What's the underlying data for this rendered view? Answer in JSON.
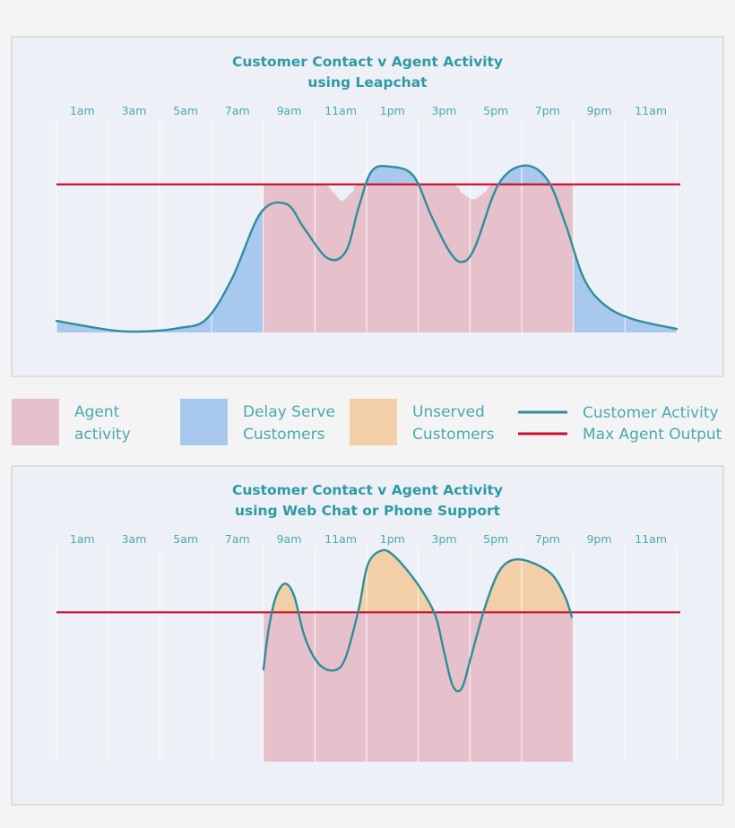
{
  "colors": {
    "agent_activity": "#e6c1cb",
    "delay_serve": "#a9c8ee",
    "unserved": "#f3cfa8",
    "customer_activity": "#2e8f9a",
    "max_agent_output": "#c8102e",
    "panel_background": "#edf1f7",
    "gridline": "#ffffff",
    "text": "#2f9aa3"
  },
  "legend": {
    "items": [
      {
        "kind": "swatch",
        "color_key": "agent_activity",
        "lines": [
          "Agent",
          "activity"
        ]
      },
      {
        "kind": "swatch",
        "color_key": "delay_serve",
        "lines": [
          "Delay Serve",
          "Customers"
        ]
      },
      {
        "kind": "swatch",
        "color_key": "unserved",
        "lines": [
          "Unserved",
          "Customers"
        ]
      },
      {
        "kind": "line",
        "color_key": "customer_activity",
        "lines": [
          "Customer Activity"
        ]
      },
      {
        "kind": "line",
        "color_key": "max_agent_output",
        "lines": [
          "Max Agent Output"
        ]
      }
    ]
  },
  "chart_data": [
    {
      "type": "area",
      "title": "Customer Contact v Agent Activity",
      "subtitle": "using Leapchat",
      "xlabel": "",
      "ylabel": "",
      "tick_labels": [
        "1am",
        "3am",
        "5am",
        "7am",
        "9am",
        "11am",
        "1pm",
        "3pm",
        "5pm",
        "7pm",
        "9pm",
        "11am"
      ],
      "xlim": [
        0,
        24
      ],
      "ylim": [
        0,
        144
      ],
      "grid": "vertical",
      "x_unit": "hour of day",
      "max_agent_output": 100,
      "customer_activity": [
        [
          0,
          7.8
        ],
        [
          2,
          1.8
        ],
        [
          3.2,
          0.6
        ],
        [
          4.75,
          3
        ],
        [
          5.8,
          9
        ],
        [
          6.8,
          36.7
        ],
        [
          7.9,
          80.7
        ],
        [
          8.9,
          86.7
        ],
        [
          9.6,
          69.9
        ],
        [
          10.5,
          50
        ],
        [
          11.2,
          54.8
        ],
        [
          11.7,
          84.9
        ],
        [
          12.2,
          109
        ],
        [
          12.9,
          112
        ],
        [
          13.8,
          106
        ],
        [
          14.5,
          78.9
        ],
        [
          15.2,
          54.8
        ],
        [
          15.7,
          47.6
        ],
        [
          16.2,
          57.8
        ],
        [
          17.1,
          100
        ],
        [
          18.1,
          112.7
        ],
        [
          19,
          103
        ],
        [
          19.7,
          72.9
        ],
        [
          20.4,
          36.7
        ],
        [
          21.2,
          18.7
        ],
        [
          22.3,
          9
        ],
        [
          24,
          2.4
        ]
      ],
      "customer_fill_key": "delay_serve",
      "agent_activity": [
        [
          8,
          100
        ],
        [
          10.2,
          100
        ],
        [
          10.7,
          95
        ],
        [
          11.05,
          89
        ],
        [
          11.45,
          95
        ],
        [
          11.9,
          100
        ],
        [
          15.1,
          100
        ],
        [
          15.7,
          94
        ],
        [
          16.15,
          90
        ],
        [
          16.6,
          95
        ],
        [
          17.1,
          100
        ],
        [
          20,
          100
        ]
      ]
    },
    {
      "type": "area",
      "title": "Customer Contact v Agent Activity",
      "subtitle": "using Web Chat or Phone Support",
      "xlabel": "",
      "ylabel": "",
      "tick_labels": [
        "1am",
        "3am",
        "5am",
        "7am",
        "9am",
        "11am",
        "1pm",
        "3pm",
        "5pm",
        "7pm",
        "9pm",
        "11am"
      ],
      "xlim": [
        0,
        24
      ],
      "ylim": [
        0,
        144
      ],
      "grid": "vertical",
      "x_unit": "hour of day",
      "max_agent_output": 100,
      "customer_activity": [
        [
          8.01,
          61.7
        ],
        [
          8.22,
          89.8
        ],
        [
          8.5,
          110.8
        ],
        [
          8.85,
          119.2
        ],
        [
          9.2,
          110.8
        ],
        [
          9.6,
          83.8
        ],
        [
          10.13,
          65.9
        ],
        [
          10.72,
          61.1
        ],
        [
          11.17,
          68.9
        ],
        [
          11.69,
          101.8
        ],
        [
          12.04,
          131.7
        ],
        [
          12.56,
          141.3
        ],
        [
          13.07,
          137.7
        ],
        [
          13.94,
          119.8
        ],
        [
          14.64,
          98.8
        ],
        [
          14.98,
          74.9
        ],
        [
          15.33,
          50.9
        ],
        [
          15.68,
          49.1
        ],
        [
          16.02,
          68.9
        ],
        [
          16.55,
          101.8
        ],
        [
          17.07,
          125.7
        ],
        [
          17.59,
          134.7
        ],
        [
          18.28,
          134.1
        ],
        [
          19.15,
          125.7
        ],
        [
          19.67,
          110.8
        ],
        [
          19.94,
          97
        ]
      ],
      "customer_fill_key": "unserved",
      "agent_activity": [
        [
          8,
          100
        ],
        [
          20,
          100
        ]
      ]
    }
  ]
}
